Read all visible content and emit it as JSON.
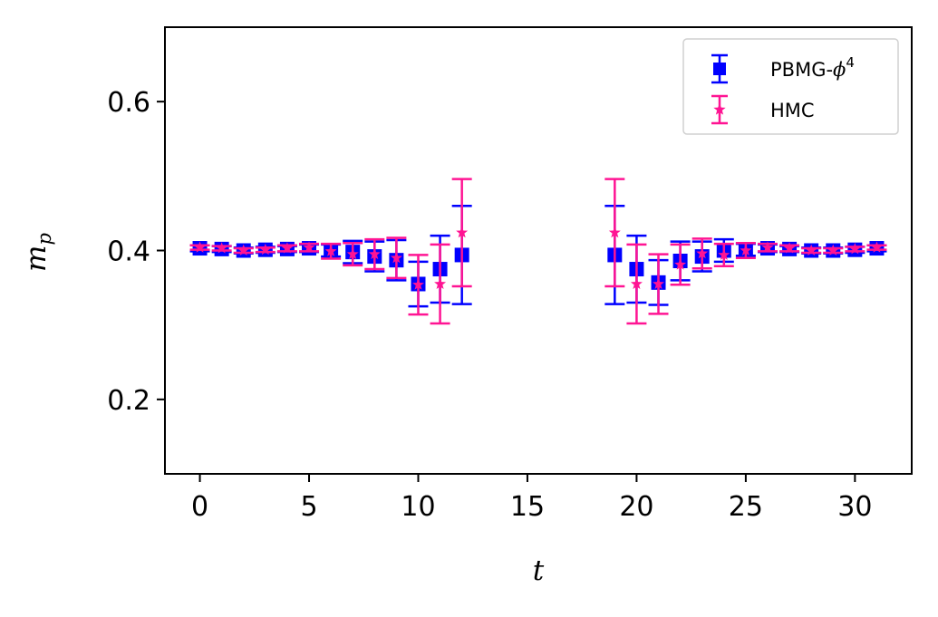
{
  "chart_data": {
    "type": "scatter",
    "title": "",
    "xlabel": "t",
    "ylabel_main": "m",
    "ylabel_sub": "p",
    "xlim": [
      -1.6,
      32.6
    ],
    "ylim": [
      0.1,
      0.7
    ],
    "xticks": [
      0,
      5,
      10,
      15,
      20,
      25,
      30
    ],
    "xtick_labels": [
      "0",
      "5",
      "10",
      "15",
      "20",
      "25",
      "30"
    ],
    "yticks": [
      0.2,
      0.4,
      0.6
    ],
    "ytick_labels": [
      "0.2",
      "0.4",
      "0.6"
    ],
    "grid": false,
    "legend_position": "top-right",
    "series": [
      {
        "name": "PBMG-ϕ⁴",
        "legend_main": "PBMG-",
        "legend_phi": "ϕ",
        "legend_sup": "4",
        "marker": "square",
        "color": "#0000ff",
        "points": [
          {
            "x": 0,
            "y": 0.403,
            "err": 0.004
          },
          {
            "x": 1,
            "y": 0.402,
            "err": 0.004
          },
          {
            "x": 2,
            "y": 0.4,
            "err": 0.004
          },
          {
            "x": 3,
            "y": 0.401,
            "err": 0.004
          },
          {
            "x": 4,
            "y": 0.402,
            "err": 0.004
          },
          {
            "x": 5,
            "y": 0.403,
            "err": 0.005
          },
          {
            "x": 6,
            "y": 0.4,
            "err": 0.008
          },
          {
            "x": 7,
            "y": 0.398,
            "err": 0.015
          },
          {
            "x": 8,
            "y": 0.392,
            "err": 0.02
          },
          {
            "x": 9,
            "y": 0.387,
            "err": 0.027
          },
          {
            "x": 10,
            "y": 0.355,
            "err": 0.03
          },
          {
            "x": 11,
            "y": 0.375,
            "err": 0.045
          },
          {
            "x": 12,
            "y": 0.394,
            "err": 0.066
          },
          {
            "x": 19,
            "y": 0.394,
            "err": 0.066
          },
          {
            "x": 20,
            "y": 0.375,
            "err": 0.045
          },
          {
            "x": 21,
            "y": 0.357,
            "err": 0.03
          },
          {
            "x": 22,
            "y": 0.386,
            "err": 0.026
          },
          {
            "x": 23,
            "y": 0.392,
            "err": 0.02
          },
          {
            "x": 24,
            "y": 0.4,
            "err": 0.015
          },
          {
            "x": 25,
            "y": 0.401,
            "err": 0.008
          },
          {
            "x": 26,
            "y": 0.403,
            "err": 0.005
          },
          {
            "x": 27,
            "y": 0.402,
            "err": 0.004
          },
          {
            "x": 28,
            "y": 0.4,
            "err": 0.004
          },
          {
            "x": 29,
            "y": 0.4,
            "err": 0.004
          },
          {
            "x": 30,
            "y": 0.401,
            "err": 0.004
          },
          {
            "x": 31,
            "y": 0.403,
            "err": 0.004
          }
        ]
      },
      {
        "name": "HMC",
        "legend_main": "HMC",
        "marker": "star",
        "color": "#ff1493",
        "points": [
          {
            "x": 0,
            "y": 0.404,
            "err": 0.003
          },
          {
            "x": 1,
            "y": 0.403,
            "err": 0.003
          },
          {
            "x": 2,
            "y": 0.4,
            "err": 0.003
          },
          {
            "x": 3,
            "y": 0.401,
            "err": 0.003
          },
          {
            "x": 4,
            "y": 0.403,
            "err": 0.004
          },
          {
            "x": 5,
            "y": 0.404,
            "err": 0.005
          },
          {
            "x": 6,
            "y": 0.399,
            "err": 0.01
          },
          {
            "x": 7,
            "y": 0.395,
            "err": 0.015
          },
          {
            "x": 8,
            "y": 0.395,
            "err": 0.02
          },
          {
            "x": 9,
            "y": 0.39,
            "err": 0.027
          },
          {
            "x": 10,
            "y": 0.354,
            "err": 0.04
          },
          {
            "x": 11,
            "y": 0.355,
            "err": 0.053
          },
          {
            "x": 12,
            "y": 0.424,
            "err": 0.072
          },
          {
            "x": 19,
            "y": 0.424,
            "err": 0.072
          },
          {
            "x": 20,
            "y": 0.355,
            "err": 0.053
          },
          {
            "x": 21,
            "y": 0.355,
            "err": 0.04
          },
          {
            "x": 22,
            "y": 0.381,
            "err": 0.027
          },
          {
            "x": 23,
            "y": 0.396,
            "err": 0.02
          },
          {
            "x": 24,
            "y": 0.394,
            "err": 0.015
          },
          {
            "x": 25,
            "y": 0.4,
            "err": 0.01
          },
          {
            "x": 26,
            "y": 0.404,
            "err": 0.005
          },
          {
            "x": 27,
            "y": 0.403,
            "err": 0.004
          },
          {
            "x": 28,
            "y": 0.4,
            "err": 0.003
          },
          {
            "x": 29,
            "y": 0.4,
            "err": 0.003
          },
          {
            "x": 30,
            "y": 0.402,
            "err": 0.003
          },
          {
            "x": 31,
            "y": 0.404,
            "err": 0.003
          }
        ]
      }
    ]
  }
}
